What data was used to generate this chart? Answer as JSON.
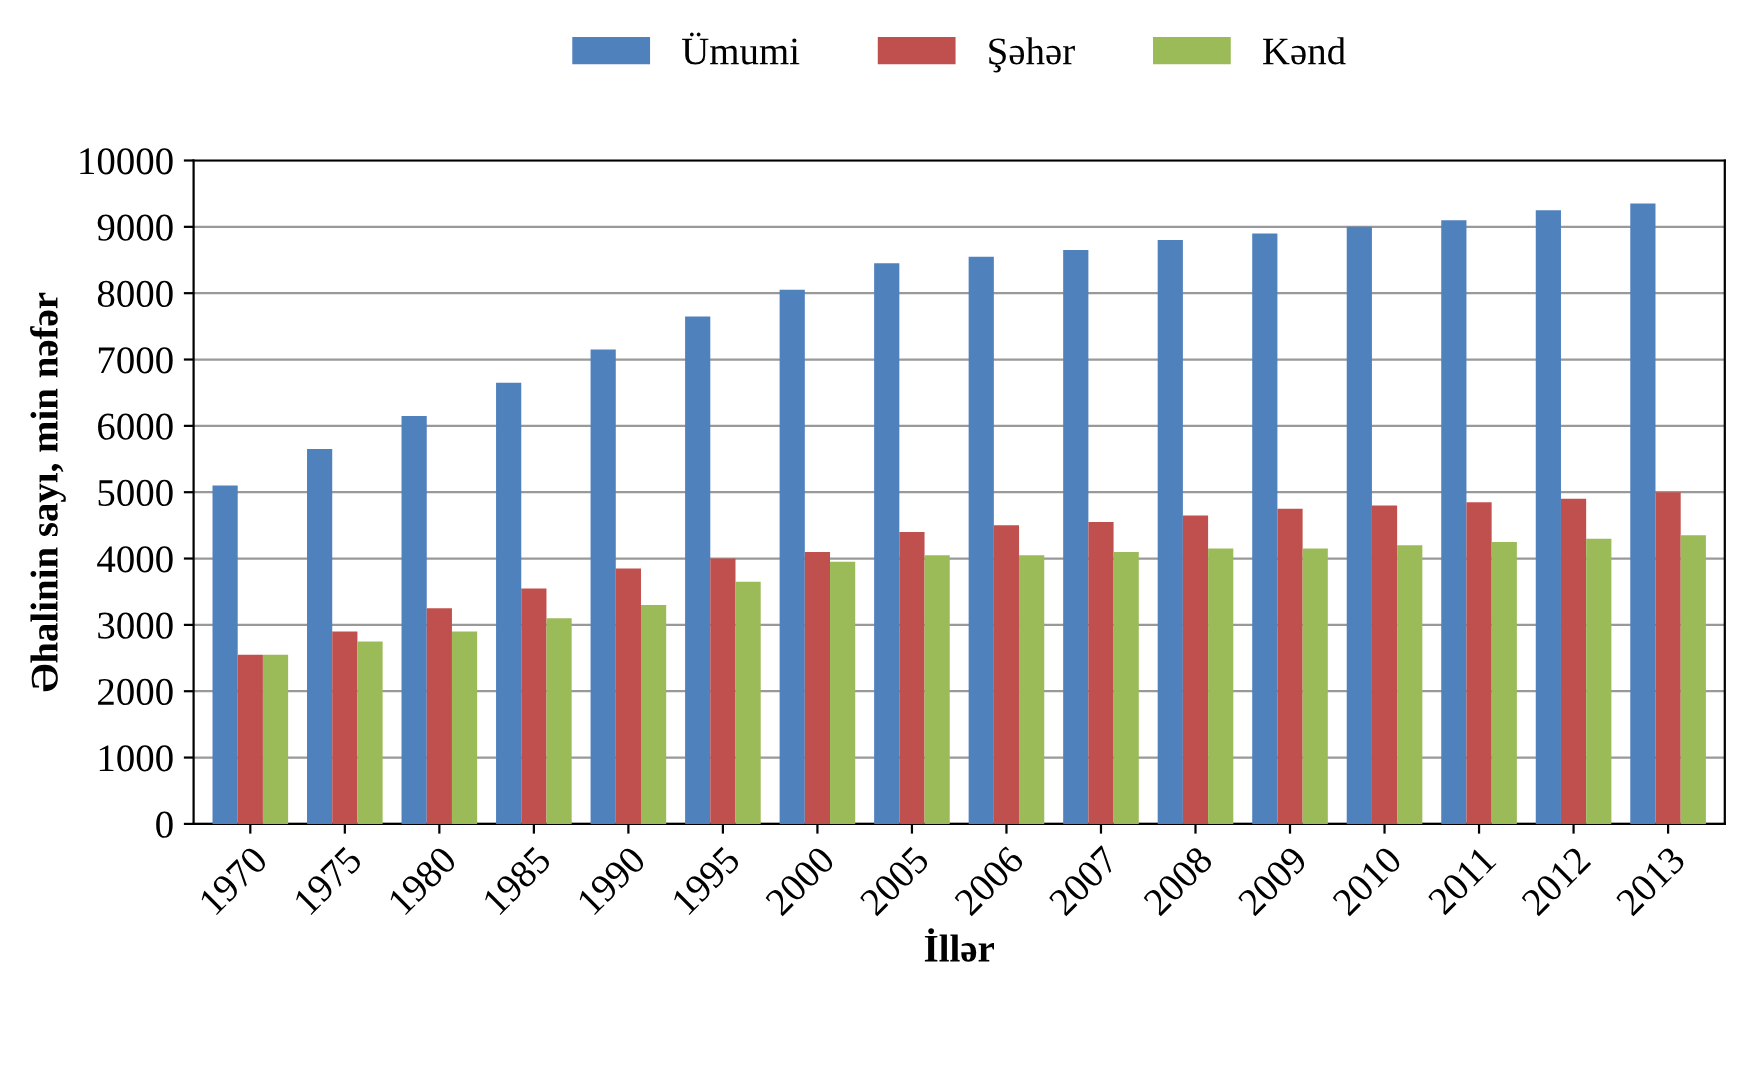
{
  "chart_data": {
    "type": "bar",
    "xlabel": "İllər",
    "ylabel": "Əhalinin sayı, min nəfər",
    "categories": [
      "1970",
      "1975",
      "1980",
      "1985",
      "1990",
      "1995",
      "2000",
      "2005",
      "2006",
      "2007",
      "2008",
      "2009",
      "2010",
      "2011",
      "2012",
      "2013"
    ],
    "series": [
      {
        "name": "Ümumi",
        "color": "#4f81bd",
        "values": [
          5100,
          5650,
          6150,
          6650,
          7150,
          7650,
          8050,
          8450,
          8550,
          8650,
          8800,
          8900,
          9000,
          9100,
          9250,
          9350
        ]
      },
      {
        "name": "Şəhər",
        "color": "#c0504d",
        "values": [
          2550,
          2900,
          3250,
          3550,
          3850,
          4000,
          4100,
          4400,
          4500,
          4550,
          4650,
          4750,
          4800,
          4850,
          4900,
          5000
        ]
      },
      {
        "name": "Kənd",
        "color": "#9bbb59",
        "values": [
          2550,
          2750,
          2900,
          3100,
          3300,
          3650,
          3950,
          4050,
          4050,
          4100,
          4150,
          4150,
          4200,
          4250,
          4300,
          4350
        ]
      }
    ],
    "ylim": [
      0,
      10000
    ],
    "yticks": [
      0,
      1000,
      2000,
      3000,
      4000,
      5000,
      6000,
      7000,
      8000,
      9000,
      10000
    ],
    "grid": "y",
    "legend": "top"
  }
}
